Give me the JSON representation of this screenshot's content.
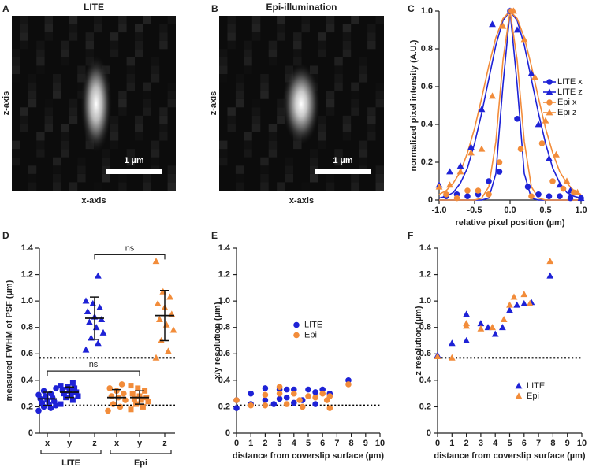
{
  "chart_data": [
    {
      "type": "image",
      "panel": "A",
      "title": "LITE",
      "x_label": "x-axis",
      "y_label": "z-axis",
      "scale_bar_label": "1 µm"
    },
    {
      "type": "image",
      "panel": "B",
      "title": "Epi-illumination",
      "x_label": "x-axis",
      "y_label": "z-axis",
      "scale_bar_label": "1 µm"
    },
    {
      "type": "scatter",
      "panel": "C",
      "x_label": "relative pixel position (µm)",
      "y_label": "normalized pixel intensity (A.U.)",
      "xlim": [
        -1,
        1
      ],
      "xticks": [
        {
          "value": -1,
          "label": "-1.0"
        },
        -0.5,
        {
          "value": 0,
          "label": "0.0"
        },
        0.5,
        {
          "value": 1,
          "label": "1.0"
        }
      ],
      "ylim": [
        0,
        1
      ],
      "yticks": [
        0,
        0.2,
        0.4,
        0.6,
        0.8,
        {
          "value": 1,
          "label": "1.0"
        }
      ],
      "legend": "center right",
      "series": [
        {
          "name": "LITE x",
          "color": "#1e22d6",
          "marker": "circle",
          "x": [
            -0.9,
            -0.75,
            -0.6,
            -0.45,
            -0.3,
            -0.15,
            0,
            0.1,
            0.25,
            0.4,
            0.55,
            0.7,
            0.85,
            1.0
          ],
          "values": [
            0.02,
            0.03,
            0.02,
            0.03,
            0.1,
            0.15,
            1.0,
            0.43,
            0.07,
            0.03,
            0.02,
            0.02,
            0.01,
            0.01
          ]
        },
        {
          "name": "LITE z",
          "color": "#1e22d6",
          "marker": "triangle",
          "x": [
            -1.0,
            -0.85,
            -0.7,
            -0.55,
            -0.4,
            -0.25,
            0,
            0.1,
            0.3,
            0.4,
            0.55,
            0.7,
            0.85,
            1.0
          ],
          "values": [
            0.08,
            0.15,
            0.18,
            0.28,
            0.48,
            0.93,
            1.0,
            0.9,
            0.67,
            0.4,
            0.22,
            0.08,
            0.05,
            0.01
          ]
        },
        {
          "name": "Epi x",
          "color": "#f28c3a",
          "marker": "circle",
          "x": [
            -0.9,
            -0.75,
            -0.6,
            -0.45,
            -0.3,
            -0.15,
            0.02,
            0.15,
            0.3,
            0.45,
            0.6,
            0.75,
            0.9
          ],
          "values": [
            0.03,
            0.01,
            0.05,
            0.05,
            0.03,
            0.2,
            1.0,
            0.27,
            0.02,
            0.3,
            0.1,
            0.06,
            0.04
          ]
        },
        {
          "name": "Epi z",
          "color": "#f28c3a",
          "marker": "triangle",
          "x": [
            -1.0,
            -0.85,
            -0.7,
            -0.55,
            -0.4,
            -0.25,
            -0.1,
            0.05,
            0.2,
            0.35,
            0.5,
            0.65,
            0.8,
            0.95
          ],
          "values": [
            0.07,
            0.08,
            0.15,
            0.25,
            0.27,
            0.55,
            0.92,
            1.0,
            0.85,
            0.65,
            0.42,
            0.24,
            0.1,
            0.04
          ]
        }
      ],
      "fit_x": [
        -1,
        -0.9,
        -0.8,
        -0.7,
        -0.6,
        -0.5,
        -0.4,
        -0.3,
        -0.2,
        -0.1,
        0,
        0.1,
        0.2,
        0.3,
        0.4,
        0.5,
        0.6,
        0.7,
        0.8,
        0.9,
        1
      ],
      "fits": [
        {
          "color": "#1e22d6",
          "values": [
            0,
            0,
            0,
            0,
            0,
            0,
            0,
            0.01,
            0.14,
            0.61,
            1,
            0.61,
            0.14,
            0.01,
            0,
            0,
            0,
            0,
            0,
            0,
            0
          ]
        },
        {
          "color": "#1e22d6",
          "values": [
            0.01,
            0.02,
            0.04,
            0.09,
            0.17,
            0.3,
            0.46,
            0.64,
            0.82,
            0.95,
            1,
            0.95,
            0.82,
            0.64,
            0.46,
            0.3,
            0.17,
            0.09,
            0.04,
            0.02,
            0.01
          ]
        },
        {
          "color": "#f28c3a",
          "values": [
            0,
            0,
            0,
            0,
            0,
            0,
            0.01,
            0.07,
            0.31,
            0.74,
            1,
            0.74,
            0.31,
            0.07,
            0.01,
            0,
            0,
            0,
            0,
            0,
            0
          ]
        },
        {
          "color": "#f28c3a",
          "values": [
            0.03,
            0.05,
            0.09,
            0.15,
            0.25,
            0.38,
            0.54,
            0.71,
            0.86,
            0.96,
            1,
            0.96,
            0.86,
            0.71,
            0.54,
            0.38,
            0.25,
            0.15,
            0.09,
            0.05,
            0.03
          ]
        }
      ]
    },
    {
      "type": "dot",
      "panel": "D",
      "y_label": "measured FWHM of PSF (µm)",
      "ylim": [
        0,
        1.4
      ],
      "yticks": [
        0,
        0.2,
        0.4,
        0.6,
        0.8,
        {
          "value": 1,
          "label": "1.0"
        },
        1.2,
        1.4
      ],
      "hlines": [
        0.57,
        0.21
      ],
      "groups": [
        {
          "label": "LITE",
          "categories": [
            "x",
            "y",
            "z"
          ]
        },
        {
          "label": "Epi",
          "categories": [
            "x",
            "y",
            "z"
          ]
        }
      ],
      "annotations": [
        "ns",
        "ns"
      ],
      "series": [
        {
          "color": "#1e22d6",
          "marker": "circle",
          "values": [
            0.17,
            0.19,
            0.2,
            0.21,
            0.22,
            0.23,
            0.24,
            0.25,
            0.26,
            0.27,
            0.28,
            0.29,
            0.3,
            0.32,
            0.34
          ],
          "mean": 0.26,
          "sd": 0.05
        },
        {
          "color": "#1e22d6",
          "marker": "square",
          "values": [
            0.22,
            0.25,
            0.27,
            0.28,
            0.29,
            0.3,
            0.31,
            0.32,
            0.33,
            0.34,
            0.35,
            0.36,
            0.38
          ],
          "mean": 0.31,
          "sd": 0.04
        },
        {
          "color": "#1e22d6",
          "marker": "triangle",
          "values": [
            0.63,
            0.68,
            0.72,
            0.76,
            0.8,
            0.84,
            0.86,
            0.88,
            0.92,
            0.95,
            0.98,
            1.0,
            1.19
          ],
          "mean": 0.87,
          "sd": 0.16
        },
        {
          "color": "#f28c3a",
          "marker": "circle",
          "values": [
            0.17,
            0.2,
            0.22,
            0.25,
            0.27,
            0.28,
            0.3,
            0.32,
            0.34,
            0.37
          ],
          "mean": 0.27,
          "sd": 0.06
        },
        {
          "color": "#f28c3a",
          "marker": "square",
          "values": [
            0.18,
            0.2,
            0.22,
            0.24,
            0.25,
            0.26,
            0.27,
            0.28,
            0.3,
            0.32,
            0.34,
            0.36
          ],
          "mean": 0.27,
          "sd": 0.05
        },
        {
          "color": "#f28c3a",
          "marker": "triangle",
          "values": [
            0.57,
            0.62,
            0.7,
            0.78,
            0.82,
            0.86,
            0.9,
            0.95,
            0.98,
            1.03,
            1.07,
            1.3
          ],
          "mean": 0.89,
          "sd": 0.19
        }
      ]
    },
    {
      "type": "scatter",
      "panel": "E",
      "x_label": "distance from coverslip surface (µm)",
      "y_label": "x/y resolution (µm)",
      "xlim": [
        0,
        10
      ],
      "xticks": [
        0,
        1,
        2,
        3,
        4,
        5,
        6,
        7,
        8,
        9,
        10
      ],
      "ylim": [
        0,
        1.4
      ],
      "yticks": [
        0,
        0.2,
        0.4,
        0.6,
        0.8,
        {
          "value": 1,
          "label": "1.0"
        },
        1.2,
        1.4
      ],
      "hlines": [
        0.21
      ],
      "legend": "center",
      "series": [
        {
          "name": "LITE",
          "color": "#1e22d6",
          "marker": "circle",
          "x": [
            0,
            0,
            1,
            1,
            2,
            2,
            2.6,
            3,
            3,
            3.5,
            3.5,
            4,
            4,
            4.6,
            5,
            5.5,
            5.5,
            6,
            6.5,
            7.8
          ],
          "values": [
            0.19,
            0.25,
            0.22,
            0.3,
            0.25,
            0.34,
            0.22,
            0.26,
            0.33,
            0.27,
            0.33,
            0.23,
            0.33,
            0.25,
            0.33,
            0.22,
            0.31,
            0.33,
            0.3,
            0.4
          ]
        },
        {
          "name": "Epi",
          "color": "#f28c3a",
          "marker": "circle",
          "x": [
            0,
            1,
            2,
            2,
            3,
            3,
            3.5,
            4,
            4.4,
            4.6,
            5,
            5.5,
            6,
            6.3,
            6.5,
            6.5,
            7.8
          ],
          "values": [
            0.25,
            0.21,
            0.29,
            0.21,
            0.3,
            0.35,
            0.22,
            0.3,
            0.25,
            0.2,
            0.28,
            0.27,
            0.3,
            0.25,
            0.19,
            0.28,
            0.37
          ]
        }
      ]
    },
    {
      "type": "scatter",
      "panel": "F",
      "x_label": "distance from coverslip surface (µm)",
      "y_label": "z resolution (µm)",
      "xlim": [
        0,
        10
      ],
      "xticks": [
        0,
        1,
        2,
        3,
        4,
        5,
        6,
        7,
        8,
        9,
        10
      ],
      "ylim": [
        0,
        1.4
      ],
      "yticks": [
        0,
        0.2,
        0.4,
        0.6,
        0.8,
        {
          "value": 1,
          "label": "1.0"
        },
        1.2,
        1.4
      ],
      "hlines": [
        0.57
      ],
      "legend": "lower right",
      "series": [
        {
          "name": "LITE",
          "color": "#1e22d6",
          "marker": "triangle",
          "x": [
            0,
            1,
            2,
            2,
            3,
            3.5,
            4,
            4.5,
            5,
            5.5,
            6,
            6.5,
            7.8
          ],
          "values": [
            0.59,
            0.68,
            0.7,
            0.9,
            0.83,
            0.8,
            0.75,
            0.8,
            0.93,
            0.97,
            0.98,
            0.99,
            1.19
          ]
        },
        {
          "name": "Epi",
          "color": "#f28c3a",
          "marker": "triangle",
          "x": [
            0,
            1,
            2,
            2,
            3,
            3.8,
            4.6,
            5,
            5.3,
            6,
            6.4,
            7.8
          ],
          "values": [
            0.58,
            0.57,
            0.81,
            0.83,
            0.79,
            0.8,
            0.86,
            0.97,
            1.03,
            1.05,
            0.98,
            1.3
          ]
        }
      ]
    }
  ]
}
